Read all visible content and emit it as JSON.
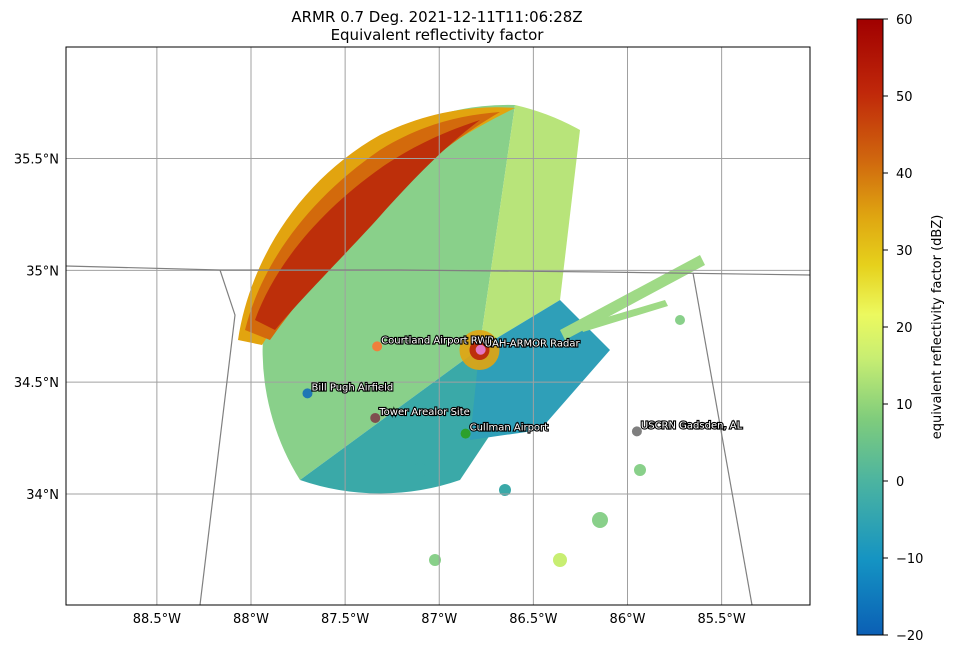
{
  "figure": {
    "title_line1": "ARMR 0.7 Deg. 2021-12-11T11:06:28Z",
    "title_line2": "Equivalent reflectivity factor"
  },
  "map": {
    "lon_range": [
      -89.0,
      -85.0
    ],
    "lat_range": [
      33.5,
      36.0
    ],
    "gridlines": true,
    "x_ticks": [
      {
        "value": -88.5,
        "label": "88.5°W"
      },
      {
        "value": -88.0,
        "label": "88°W"
      },
      {
        "value": -87.5,
        "label": "87.5°W"
      },
      {
        "value": -87.0,
        "label": "87°W"
      },
      {
        "value": -86.5,
        "label": "86.5°W"
      },
      {
        "value": -86.0,
        "label": "86°W"
      },
      {
        "value": -85.5,
        "label": "85.5°W"
      }
    ],
    "y_ticks": [
      {
        "value": 34.0,
        "label": "34°N"
      },
      {
        "value": 34.5,
        "label": "34.5°N"
      },
      {
        "value": 35.0,
        "label": "35°N"
      },
      {
        "value": 35.5,
        "label": "35.5°N"
      }
    ]
  },
  "radar": {
    "center": {
      "lon": -86.76,
      "lat": 34.65
    },
    "colormap": "HomeyerRainbow",
    "vmin": -20,
    "vmax": 60
  },
  "sites": [
    {
      "name": "Courtland Airport RWP",
      "lon": -87.33,
      "lat": 34.66,
      "color": "#f07f3c"
    },
    {
      "name": "UAH-ARMOR Radar",
      "lon": -86.78,
      "lat": 34.645,
      "color": "#e377c2"
    },
    {
      "name": "Bill Pugh Airfield",
      "lon": -87.7,
      "lat": 34.45,
      "color": "#1f77b4"
    },
    {
      "name": "Tower Arealor Site",
      "lon": -87.34,
      "lat": 34.34,
      "color": "#7f4f4f"
    },
    {
      "name": "Cullman Airport",
      "lon": -86.86,
      "lat": 34.27,
      "color": "#2ca02c"
    },
    {
      "name": "USCRN Gadsden, AL",
      "lon": -85.95,
      "lat": 34.28,
      "color": "#7f7f7f"
    }
  ],
  "colorbar": {
    "label": "equivalent reflectivity factor (dBZ)",
    "ticks": [
      -20,
      -10,
      0,
      10,
      20,
      30,
      40,
      50,
      60
    ]
  }
}
